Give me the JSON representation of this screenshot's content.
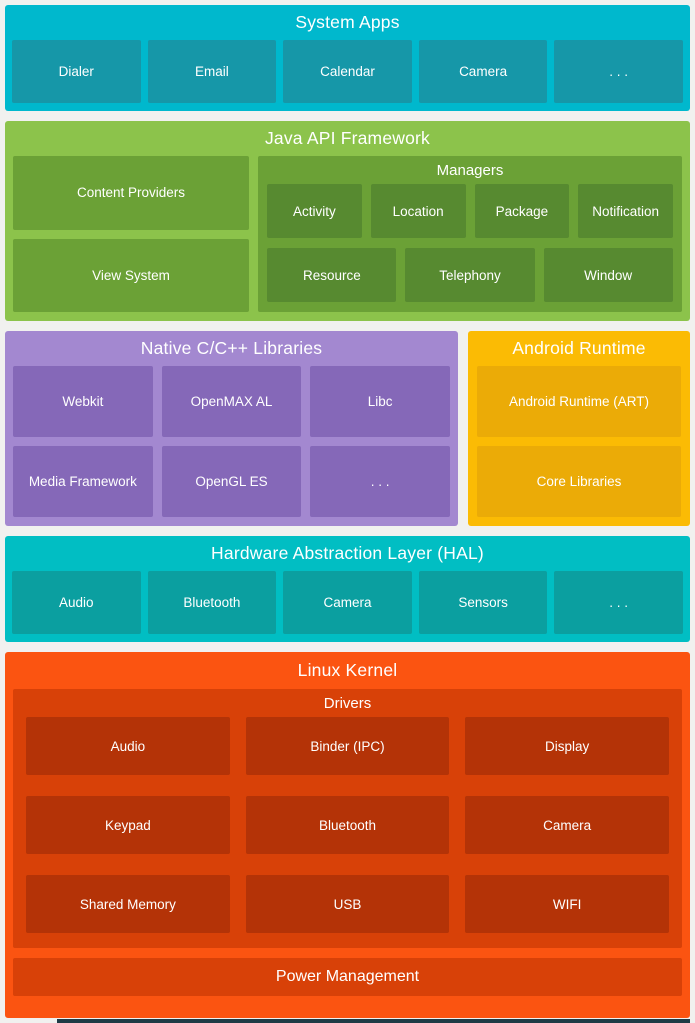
{
  "palette": {
    "page_bg": "#f1f1ef",
    "system_bg": "#00b8cd",
    "system_box": "#1697a8",
    "java_bg": "#8cc34b",
    "java_box": "#6ba136",
    "java_inner": "#578a30",
    "native_bg": "#a388d0",
    "native_box": "#8568b8",
    "runtime_bg": "#fbbb04",
    "runtime_box": "#ebab07",
    "hal_bg": "#01bec3",
    "hal_box": "#0b9fa0",
    "kernel_bg": "#fb5411",
    "kernel_container": "#d84108",
    "kernel_box": "#b43307",
    "strip": "#1e3b46",
    "text": "#ffffff"
  },
  "system_apps": {
    "title": "System Apps",
    "items": [
      "Dialer",
      "Email",
      "Calendar",
      "Camera",
      ". . ."
    ]
  },
  "java_api": {
    "title": "Java API Framework",
    "content_providers": "Content Providers",
    "view_system": "View System",
    "managers": {
      "title": "Managers",
      "row1": [
        "Activity",
        "Location",
        "Package",
        "Notification"
      ],
      "row2": [
        "Resource",
        "Telephony",
        "Window"
      ]
    }
  },
  "native_libs": {
    "title": "Native C/C++ Libraries",
    "row1": [
      "Webkit",
      "OpenMAX AL",
      "Libc"
    ],
    "row2": [
      "Media Framework",
      "OpenGL ES",
      ". . ."
    ]
  },
  "android_runtime": {
    "title": "Android Runtime",
    "items": [
      "Android Runtime (ART)",
      "Core Libraries"
    ]
  },
  "hal": {
    "title": "Hardware Abstraction Layer (HAL)",
    "items": [
      "Audio",
      "Bluetooth",
      "Camera",
      "Sensors",
      ". . ."
    ]
  },
  "linux_kernel": {
    "title": "Linux Kernel",
    "drivers": {
      "title": "Drivers",
      "rows": [
        [
          "Audio",
          "Binder (IPC)",
          "Display"
        ],
        [
          "Keypad",
          "Bluetooth",
          "Camera"
        ],
        [
          "Shared Memory",
          "USB",
          "WIFI"
        ]
      ]
    },
    "power_management": "Power Management"
  }
}
